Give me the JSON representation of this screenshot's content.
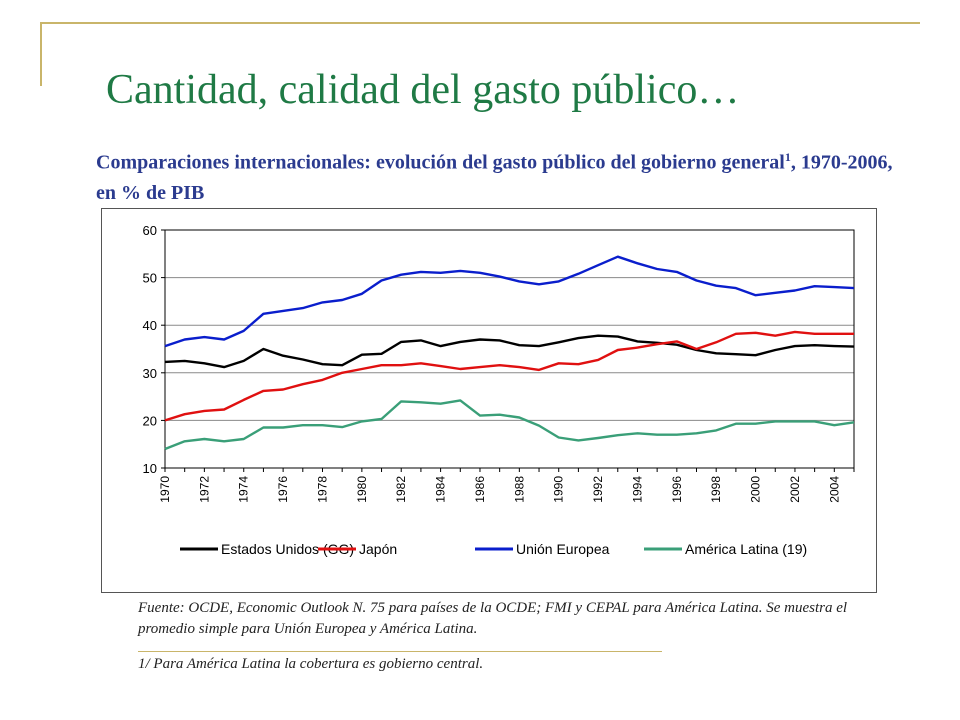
{
  "slide": {
    "title": "Cantidad, calidad del gasto público…",
    "subtitle_main": "Comparaciones internacionales: evolución del gasto público del gobierno general",
    "subtitle_sup": "1",
    "subtitle_rest": ", 1970-2006, en % de PIB",
    "source_note": "Fuente: OCDE, Economic Outlook N. 75 para países de la OCDE; FMI y CEPAL para América Latina. Se muestra el promedio simple para Unión Europea y América Latina.",
    "footnote": "1/ Para América Latina la cobertura es gobierno central.",
    "accent_color": "#c9b56a"
  },
  "chart_data": {
    "type": "line",
    "x": [
      1970,
      1971,
      1972,
      1973,
      1974,
      1975,
      1976,
      1977,
      1978,
      1979,
      1980,
      1981,
      1982,
      1983,
      1984,
      1985,
      1986,
      1987,
      1988,
      1989,
      1990,
      1991,
      1992,
      1993,
      1994,
      1995,
      1996,
      1997,
      1998,
      1999,
      2000,
      2001,
      2002,
      2003,
      2004,
      2005
    ],
    "xticks": [
      "1970",
      "1972",
      "1974",
      "1976",
      "1978",
      "1980",
      "1982",
      "1984",
      "1986",
      "1988",
      "1990",
      "1992",
      "1994",
      "1996",
      "1998",
      "2000",
      "2002",
      "2004"
    ],
    "yticks": [
      "10",
      "20",
      "30",
      "40",
      "50",
      "60"
    ],
    "ylim": [
      10,
      60
    ],
    "grid": true,
    "legend_position": "bottom",
    "series": [
      {
        "name": "Estados Unidos (GG)",
        "color": "#000000",
        "values": [
          32.3,
          32.5,
          32.0,
          31.2,
          32.5,
          35.0,
          33.6,
          32.8,
          31.8,
          31.6,
          33.8,
          34.0,
          36.5,
          36.8,
          35.6,
          36.5,
          37.0,
          36.8,
          35.8,
          35.6,
          36.4,
          37.3,
          37.8,
          37.6,
          36.6,
          36.3,
          35.9,
          34.8,
          34.1,
          33.9,
          33.7,
          34.8,
          35.6,
          35.8,
          35.6,
          35.5
        ]
      },
      {
        "name": "Japón",
        "color": "#e01010",
        "values": [
          20.0,
          21.3,
          22.0,
          22.3,
          24.3,
          26.2,
          26.5,
          27.6,
          28.5,
          30.0,
          30.8,
          31.6,
          31.6,
          32.0,
          31.4,
          30.8,
          31.2,
          31.6,
          31.2,
          30.6,
          32.0,
          31.8,
          32.7,
          34.8,
          35.3,
          36.0,
          36.6,
          35.0,
          36.4,
          38.2,
          38.4,
          37.8,
          38.6,
          38.2,
          38.2,
          38.2
        ]
      },
      {
        "name": "Unión Europea",
        "color": "#0a1ecc",
        "values": [
          35.6,
          37.0,
          37.5,
          37.0,
          38.8,
          42.4,
          43.0,
          43.6,
          44.8,
          45.3,
          46.6,
          49.4,
          50.6,
          51.2,
          51.0,
          51.4,
          51.0,
          50.2,
          49.2,
          48.6,
          49.2,
          50.8,
          52.6,
          54.4,
          53.0,
          51.8,
          51.2,
          49.4,
          48.3,
          47.8,
          46.3,
          46.8,
          47.3,
          48.2,
          48.0,
          47.8
        ]
      },
      {
        "name": "América Latina (19)",
        "color": "#3a9f78",
        "values": [
          14.0,
          15.6,
          16.1,
          15.6,
          16.1,
          18.5,
          18.5,
          19.0,
          19.0,
          18.6,
          19.8,
          20.3,
          24.0,
          23.8,
          23.5,
          24.2,
          21.0,
          21.2,
          20.6,
          18.9,
          16.4,
          15.8,
          16.3,
          16.9,
          17.3,
          17.0,
          17.0,
          17.3,
          17.9,
          19.3,
          19.3,
          19.8,
          19.8,
          19.8,
          19.0,
          19.6
        ]
      }
    ]
  }
}
